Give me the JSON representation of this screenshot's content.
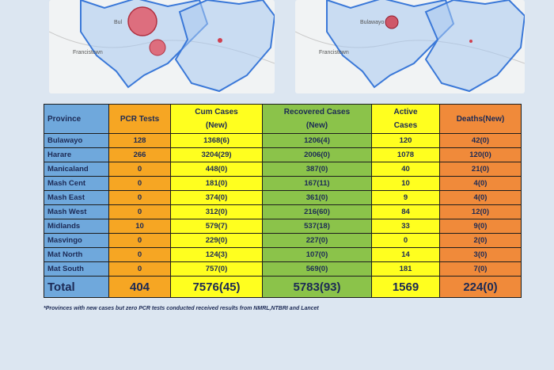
{
  "maps": {
    "left": {
      "labels": [
        "Francistown",
        "Bul"
      ]
    },
    "right": {
      "labels": [
        "Francistown",
        "Bulawayo"
      ]
    }
  },
  "table": {
    "headers": {
      "province": "Province",
      "pcr": "PCR Tests",
      "cum_line1": "Cum Cases",
      "cum_line2": "(New)",
      "rec_line1": "Recovered Cases",
      "rec_line2": "(New)",
      "active_line1": "Active",
      "active_line2": "Cases",
      "deaths": "Deaths(New)"
    },
    "rows": [
      [
        "Bulawayo",
        "128",
        "1368(6)",
        "1206(4)",
        "120",
        "42(0)"
      ],
      [
        "Harare",
        "266",
        "3204(29)",
        "2006(0)",
        "1078",
        "120(0)"
      ],
      [
        "Manicaland",
        "0",
        "448(0)",
        "387(0)",
        "40",
        "21(0)"
      ],
      [
        "Mash Cent",
        "0",
        "181(0)",
        "167(11)",
        "10",
        "4(0)"
      ],
      [
        "Mash East",
        "0",
        "374(0)",
        "361(0)",
        "9",
        "4(0)"
      ],
      [
        "Mash West",
        "0",
        "312(0)",
        "216(60)",
        "84",
        "12(0)"
      ],
      [
        "Midlands",
        "10",
        "579(7)",
        "537(18)",
        "33",
        "9(0)"
      ],
      [
        "Masvingo",
        "0",
        "229(0)",
        "227(0)",
        "0",
        "2(0)"
      ],
      [
        "Mat North",
        "0",
        "124(3)",
        "107(0)",
        "14",
        "3(0)"
      ],
      [
        "Mat South",
        "0",
        "757(0)",
        "569(0)",
        "181",
        "7(0)"
      ]
    ],
    "total": [
      "Total",
      "404",
      "7576(45)",
      "5783(93)",
      "1569",
      "224(0)"
    ]
  },
  "footnote": "*Provinces with new cases but zero PCR tests conducted received results from NMRL,NTBRI and Lancet",
  "colors": {
    "blue": "#6fa8dc",
    "orange": "#f6a623",
    "yellow": "#ffff1f",
    "green": "#8bc34a",
    "red": "#f08a3a",
    "map_border": "#3a78d8",
    "bubble": "#e05a6a"
  }
}
